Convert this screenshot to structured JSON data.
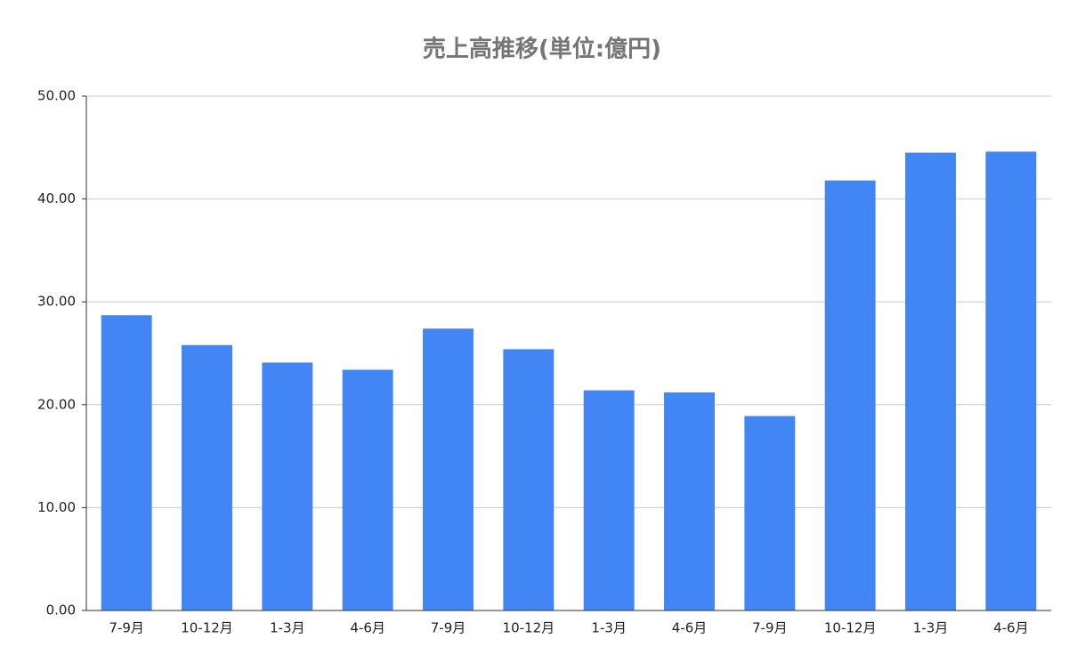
{
  "chart_data": {
    "type": "bar",
    "title": "売上高推移(単位:億円)",
    "categories": [
      "7-9月",
      "10-12月",
      "1-3月",
      "4-6月",
      "7-9月",
      "10-12月",
      "1-3月",
      "4-6月",
      "7-9月",
      "10-12月",
      "1-3月",
      "4-6月"
    ],
    "values": [
      28.7,
      25.8,
      24.1,
      23.4,
      27.4,
      25.4,
      21.4,
      21.2,
      18.9,
      41.8,
      44.5,
      44.6
    ],
    "color": "#4285f4",
    "ylim": [
      0,
      50
    ],
    "yticks": [
      {
        "value": 0,
        "label": "0.00"
      },
      {
        "value": 10,
        "label": "10.00"
      },
      {
        "value": 20,
        "label": "20.00"
      },
      {
        "value": 30,
        "label": "30.00"
      },
      {
        "value": 40,
        "label": "40.00"
      },
      {
        "value": 50,
        "label": "50.00"
      }
    ],
    "grid": true
  }
}
